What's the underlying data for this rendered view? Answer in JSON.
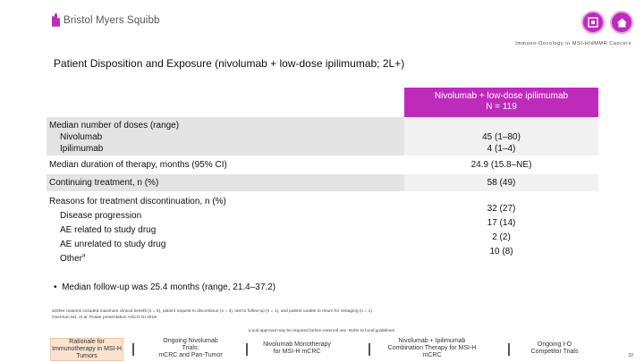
{
  "header": {
    "logo_text": "Bristol Myers Squibb",
    "brand_color": "#be2bbb",
    "subtitle": "Immuno-Oncology in MSI-H/dMMR Cancers",
    "icons": [
      "exit-slide-icon",
      "home-icon"
    ]
  },
  "title": "Patient Disposition and Exposure (nivolumab + low-dose ipilimumab; 2L+)",
  "table": {
    "column_header_line1": "Nivolumab + low-dose ipilimumab",
    "column_header_line2": "N = 119",
    "rows": [
      {
        "label": "Median number of doses (range)",
        "sub": [
          "Nivolumab",
          "Ipilimumab"
        ],
        "values": [
          "45 (1–80)",
          "4 (1–4)"
        ]
      },
      {
        "label": "Median duration of therapy, months (95% CI)",
        "values": [
          "24.9 (15.8–NE)"
        ]
      },
      {
        "label": "Continuing treatment, n (%)",
        "values": [
          "58 (49)"
        ]
      },
      {
        "label": "Reasons for treatment discontinuation, n (%)",
        "sub": [
          "Disease progression",
          "AE related to study drug",
          "AE unrelated to study drug",
          "Other"
        ],
        "sup": "a",
        "values": [
          "32 (27)",
          "17 (14)",
          "2 (2)",
          "10 (8)"
        ]
      }
    ]
  },
  "bullet": "Median follow-up was 25.4 months (range, 21.4–37.2)",
  "footnote_line1": "aOther reasons included maximum clinical benefit (n = 5), patient request to discontinue (n = 3), lost to follow-up (n = 1), and patient unable to return for restaging (n = 1).",
  "footnote_line2": "Overman MJ, et al. Poster presentation ASCO-GI 2019.",
  "approval_note": "Local approval may be required before external use. Refer to local guidelines.",
  "nav": [
    {
      "line1": "Rationale for",
      "line2": "Immunotherapy in MSI-H",
      "line3": "Tumors"
    },
    {
      "line1": "Ongoing Nivolumab",
      "line2": "Trials:",
      "line3": "mCRC and Pan-Tumor"
    },
    {
      "line1": "Nivolumab Monotherapy",
      "line2": "for MSI-H mCRC",
      "line3": ""
    },
    {
      "line1": "Nivolumab + Ipilimumab",
      "line2": "Combination Therapy for MSI-H",
      "line3": "mCRC"
    },
    {
      "line1": "Ongoing I-O",
      "line2": "Competitor Trials",
      "line3": ""
    }
  ],
  "page_number": "22"
}
